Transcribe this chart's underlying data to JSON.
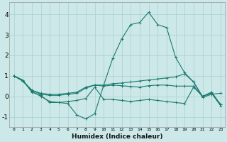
{
  "xlabel": "Humidex (Indice chaleur)",
  "xlim": [
    -0.5,
    23.5
  ],
  "ylim": [
    -1.5,
    4.6
  ],
  "yticks": [
    -1,
    0,
    1,
    2,
    3,
    4
  ],
  "xticks": [
    0,
    1,
    2,
    3,
    4,
    5,
    6,
    7,
    8,
    9,
    10,
    11,
    12,
    13,
    14,
    15,
    16,
    17,
    18,
    19,
    20,
    21,
    22,
    23
  ],
  "bg_color": "#cce8e8",
  "line_color": "#1a7a6e",
  "grid_color": "#aacfcf",
  "lines": [
    {
      "x": [
        0,
        1,
        2,
        3,
        4,
        5,
        6,
        7,
        8,
        9,
        10,
        11,
        12,
        13,
        14,
        15,
        16,
        17,
        18,
        19,
        20,
        21,
        22,
        23
      ],
      "y": [
        1.0,
        0.8,
        0.2,
        0.05,
        -0.3,
        -0.3,
        -0.35,
        -0.9,
        -1.1,
        -0.85,
        0.55,
        1.85,
        2.8,
        3.5,
        3.6,
        4.1,
        3.5,
        3.35,
        1.9,
        1.15,
        0.7,
        -0.05,
        0.1,
        0.15
      ]
    },
    {
      "x": [
        0,
        1,
        2,
        3,
        4,
        5,
        6,
        7,
        8,
        9,
        10,
        11,
        12,
        13,
        14,
        15,
        16,
        17,
        18,
        19,
        20,
        21,
        22,
        23
      ],
      "y": [
        1.0,
        0.75,
        0.3,
        0.15,
        0.1,
        0.1,
        0.15,
        0.2,
        0.45,
        0.55,
        0.55,
        0.62,
        0.65,
        0.7,
        0.75,
        0.8,
        0.85,
        0.9,
        0.95,
        1.1,
        0.7,
        0.0,
        0.2,
        -0.4
      ]
    },
    {
      "x": [
        0,
        1,
        2,
        3,
        4,
        5,
        6,
        7,
        8,
        9,
        10,
        11,
        12,
        13,
        14,
        15,
        16,
        17,
        18,
        19,
        20,
        21,
        22,
        23
      ],
      "y": [
        1.0,
        0.75,
        0.3,
        0.1,
        0.05,
        0.05,
        0.1,
        0.15,
        0.4,
        0.55,
        0.5,
        0.55,
        0.52,
        0.48,
        0.45,
        0.52,
        0.55,
        0.55,
        0.5,
        0.5,
        0.5,
        0.0,
        0.2,
        -0.4
      ]
    },
    {
      "x": [
        0,
        1,
        2,
        3,
        4,
        5,
        6,
        7,
        8,
        9,
        10,
        11,
        12,
        13,
        14,
        15,
        16,
        17,
        18,
        19,
        20,
        21,
        22,
        23
      ],
      "y": [
        1.0,
        0.75,
        0.25,
        0.0,
        -0.25,
        -0.3,
        -0.25,
        -0.2,
        -0.1,
        0.45,
        -0.15,
        -0.15,
        -0.2,
        -0.25,
        -0.2,
        -0.15,
        -0.2,
        -0.25,
        -0.3,
        -0.35,
        0.45,
        0.0,
        0.15,
        -0.45
      ]
    }
  ]
}
